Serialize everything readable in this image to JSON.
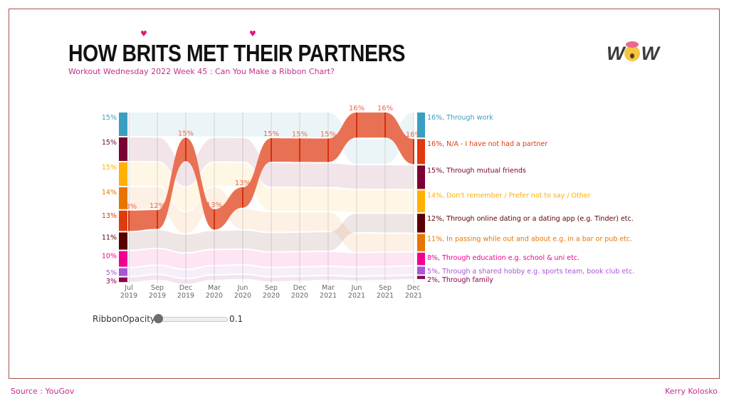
{
  "header": {
    "title": "HOW BRITS MET THEIR PARTNERS",
    "subtitle": "Workout Wednesday 2022 Week 45 : Can You Make a Ribbon Chart?",
    "logo_text": "WOW"
  },
  "slider": {
    "label": "RibbonOpacity",
    "value": "0.1",
    "fraction": 0.1
  },
  "footer": {
    "source": "Source : YouGov",
    "author": "Kerry Kolosko"
  },
  "chart_data": {
    "type": "ribbon",
    "periods": [
      [
        "Jul",
        "2019"
      ],
      [
        "Sep",
        "2019"
      ],
      [
        "Dec",
        "2019"
      ],
      [
        "Mar",
        "2020"
      ],
      [
        "Jun",
        "2020"
      ],
      [
        "Sep",
        "2020"
      ],
      [
        "Dec",
        "2020"
      ],
      [
        "Mar",
        "2021"
      ],
      [
        "Jun",
        "2021"
      ],
      [
        "Sep",
        "2021"
      ],
      [
        "Dec",
        "2021"
      ]
    ],
    "unit": "%",
    "highlighted_series": "N/A - I have not had a partner",
    "series": [
      {
        "name": "Through work",
        "color": "#3a9fbf",
        "values": [
          15,
          null,
          null,
          null,
          null,
          null,
          null,
          null,
          null,
          null,
          16
        ],
        "start_label": "15%",
        "legend_label": "16%, Through work"
      },
      {
        "name": "N/A - I have not had a partner",
        "color": "#e03a0f",
        "values": [
          13,
          12,
          15,
          13,
          13,
          15,
          15,
          15,
          16,
          16,
          16
        ],
        "start_label": "13%",
        "legend_label": "16%, N/A - I have not had a partner",
        "point_labels": [
          "13%",
          "12%",
          "15%",
          "13%",
          "13%",
          "15%",
          "15%",
          "15%",
          "16%",
          "16%",
          "16%"
        ]
      },
      {
        "name": "Through mutual friends",
        "color": "#7a0035",
        "values": [
          15,
          null,
          null,
          null,
          null,
          null,
          null,
          null,
          null,
          null,
          15
        ],
        "start_label": "15%",
        "legend_label": "15%, Through mutual friends"
      },
      {
        "name": "Don't remember / Prefer not to say / Other",
        "color": "#ffb000",
        "values": [
          15,
          null,
          null,
          null,
          null,
          null,
          null,
          null,
          null,
          null,
          14
        ],
        "start_label": "15%",
        "legend_label": "14%, Don't remember / Prefer not to say / Other"
      },
      {
        "name": "Through online dating or a dating app (e.g. Tinder) etc.",
        "color": "#5a0000",
        "values": [
          11,
          null,
          null,
          null,
          null,
          null,
          null,
          null,
          null,
          null,
          12
        ],
        "start_label": "11%",
        "legend_label": "12%, Through online dating or a dating app (e.g. Tinder) etc."
      },
      {
        "name": "In passing while out and about e.g. in a bar or pub etc.",
        "color": "#e87500",
        "values": [
          14,
          null,
          null,
          null,
          null,
          null,
          null,
          null,
          null,
          null,
          11
        ],
        "start_label": "14%",
        "legend_label": "11%, In passing while out and about e.g. in a bar or pub etc."
      },
      {
        "name": "Through education e.g. school & uni etc.",
        "color": "#f0008c",
        "values": [
          10,
          null,
          null,
          null,
          null,
          null,
          null,
          null,
          null,
          null,
          8
        ],
        "start_label": "10%",
        "legend_label": "8%, Through education e.g. school & uni etc."
      },
      {
        "name": "Through a shared hobby e.g. sports team, book club etc.",
        "color": "#a855d6",
        "values": [
          5,
          null,
          null,
          null,
          null,
          null,
          null,
          null,
          null,
          null,
          5
        ],
        "start_label": "5%",
        "legend_label": "5%, Through a shared hobby e.g. sports team, book club etc."
      },
      {
        "name": "Through family",
        "color": "#8a0050",
        "values": [
          3,
          null,
          null,
          null,
          null,
          null,
          null,
          null,
          null,
          null,
          2
        ],
        "start_label": "3%",
        "legend_label": "2%, Through family"
      }
    ]
  }
}
